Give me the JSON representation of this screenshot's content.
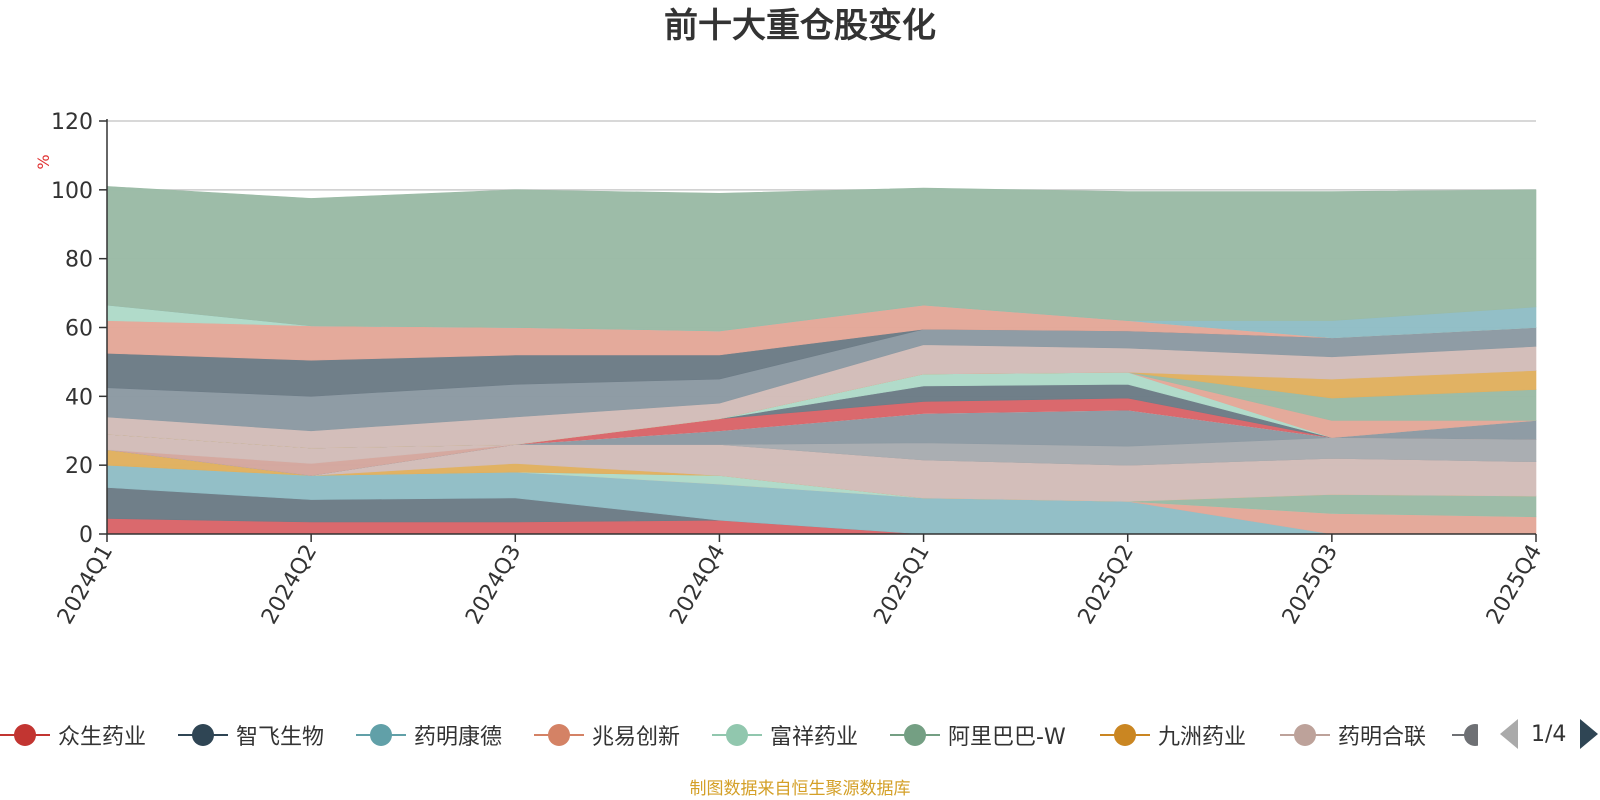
{
  "chart_data": {
    "type": "area",
    "stacked": true,
    "title": "前十大重仓股变化",
    "ylabel": "%",
    "ylim": [
      0,
      120
    ],
    "yticks": [
      0,
      20,
      40,
      60,
      80,
      100,
      120
    ],
    "grid": true,
    "legend_position": "bottom",
    "categories": [
      "2024Q1",
      "2024Q2",
      "2024Q3",
      "2024Q4",
      "2025Q1",
      "2025Q2",
      "2025Q3",
      "2025Q4"
    ],
    "series": [
      {
        "name": "众生药业",
        "color": "#d9666a",
        "values": [
          4.5,
          3.5,
          3.5,
          4,
          0,
          0,
          0,
          0
        ]
      },
      {
        "name": "智飞生物",
        "color": "#6d7c87",
        "values": [
          9,
          6.5,
          7,
          0,
          0,
          0,
          0,
          0
        ]
      },
      {
        "name": "药明康德",
        "color": "#91bec6",
        "values": [
          6.5,
          7,
          7.5,
          10.5,
          10.5,
          9.5,
          0,
          0
        ]
      },
      {
        "name": "兆易创新",
        "color": "#e3a899",
        "values": [
          0,
          0,
          0,
          0,
          0,
          0,
          6,
          5
        ]
      },
      {
        "name": "富祥药业",
        "color": "#afdac9",
        "values": [
          0,
          0,
          0,
          2.5,
          0,
          0,
          0,
          0
        ]
      },
      {
        "name": "阿里巴巴-W",
        "color": "#9bbba6",
        "values": [
          0,
          0,
          0,
          0,
          0,
          0,
          5.5,
          6
        ]
      },
      {
        "name": "九洲药业",
        "color": "#e0b060",
        "values": [
          4.5,
          0,
          2.5,
          0,
          0,
          0,
          0,
          0
        ]
      },
      {
        "name": "药明合联",
        "color": "#d2bdb9",
        "values": [
          0,
          0,
          5.5,
          9,
          11,
          10.5,
          10.5,
          10
        ]
      },
      {
        "name": "",
        "color": "#9a9ea3",
        "values": [
          0,
          0,
          0,
          0,
          0,
          0,
          0,
          0
        ]
      },
      {
        "name": "",
        "color": "#bfa9a4",
        "values": [
          0,
          0,
          0,
          0,
          0,
          0,
          0,
          0
        ]
      },
      {
        "name": "",
        "color": "#a8acb0",
        "values": [
          0,
          0,
          0,
          0,
          5,
          5.5,
          6,
          6.5
        ]
      },
      {
        "name": "",
        "color": "#8d9aa3",
        "values": [
          0,
          0,
          0,
          4,
          8.5,
          10.5,
          0,
          0
        ]
      },
      {
        "name": "",
        "color": "#d4a79e",
        "values": [
          0,
          3.5,
          0,
          0,
          0,
          0,
          0,
          0
        ]
      },
      {
        "name": "",
        "color": "#d2bdb9",
        "values": [
          4.5,
          4.5,
          0,
          0,
          0,
          0,
          0,
          0
        ]
      },
      {
        "name": "",
        "color": "#8d9aa3",
        "values": [
          0,
          0,
          0,
          0,
          0,
          0,
          0,
          5.5
        ]
      },
      {
        "name": "",
        "color": "#d9d9de",
        "values": [
          0,
          0,
          0,
          0,
          0,
          0,
          0,
          0
        ]
      },
      {
        "name": "",
        "color": "#d9666a",
        "values": [
          0,
          0,
          0,
          3.5,
          3.5,
          3.5,
          0,
          0
        ]
      },
      {
        "name": "",
        "color": "#6d7c87",
        "values": [
          0,
          0,
          0,
          0,
          4.5,
          4,
          0,
          0
        ]
      },
      {
        "name": "",
        "color": "#afdac9",
        "values": [
          0,
          0,
          0,
          0,
          3.5,
          3.5,
          0,
          0
        ]
      },
      {
        "name": "",
        "color": "#e3a899",
        "values": [
          0,
          0,
          0,
          0,
          0,
          0,
          5,
          0
        ]
      },
      {
        "name": "",
        "color": "#9bbba6",
        "values": [
          0,
          0,
          0,
          0,
          0,
          0,
          6.5,
          9
        ]
      },
      {
        "name": "",
        "color": "#e0b060",
        "values": [
          0,
          0,
          0,
          0,
          0,
          0,
          5.5,
          5.5
        ]
      },
      {
        "name": "",
        "color": "#d2bdb9",
        "values": [
          5,
          5,
          8,
          4.5,
          8.5,
          7,
          6.5,
          7
        ]
      },
      {
        "name": "",
        "color": "#8d9aa3",
        "values": [
          8.5,
          10,
          9.5,
          7,
          4.5,
          5,
          5.5,
          5.5
        ]
      },
      {
        "name": "",
        "color": "#6d7c87",
        "values": [
          10,
          10.5,
          8.5,
          7,
          0,
          0,
          0,
          0
        ]
      },
      {
        "name": "",
        "color": "#e3a899",
        "values": [
          9.5,
          10,
          8,
          7,
          7,
          3,
          0,
          0
        ]
      },
      {
        "name": "",
        "color": "#afdac9",
        "values": [
          4.5,
          0,
          0,
          0,
          0,
          0,
          0,
          0
        ]
      },
      {
        "name": "",
        "color": "#91bec6",
        "values": [
          0,
          0,
          0,
          0,
          0,
          0,
          5,
          6
        ]
      },
      {
        "name": "",
        "color": "#9bbba6",
        "values": [
          34.5,
          37,
          40,
          40,
          34,
          37.5,
          37.5,
          34
        ]
      }
    ]
  },
  "legend": {
    "items": [
      {
        "label": "众生药业",
        "color": "#c23531"
      },
      {
        "label": "智飞生物",
        "color": "#2f4554"
      },
      {
        "label": "药明康德",
        "color": "#61a0a8"
      },
      {
        "label": "兆易创新",
        "color": "#d48265"
      },
      {
        "label": "富祥药业",
        "color": "#91c7ae"
      },
      {
        "label": "阿里巴巴-W",
        "color": "#749f83"
      },
      {
        "label": "九洲药业",
        "color": "#ca8622"
      },
      {
        "label": "药明合联",
        "color": "#bda29a"
      }
    ],
    "page": "1/4",
    "partial_color": "#6e7074"
  },
  "source_note": "制图数据来自恒生聚源数据库"
}
